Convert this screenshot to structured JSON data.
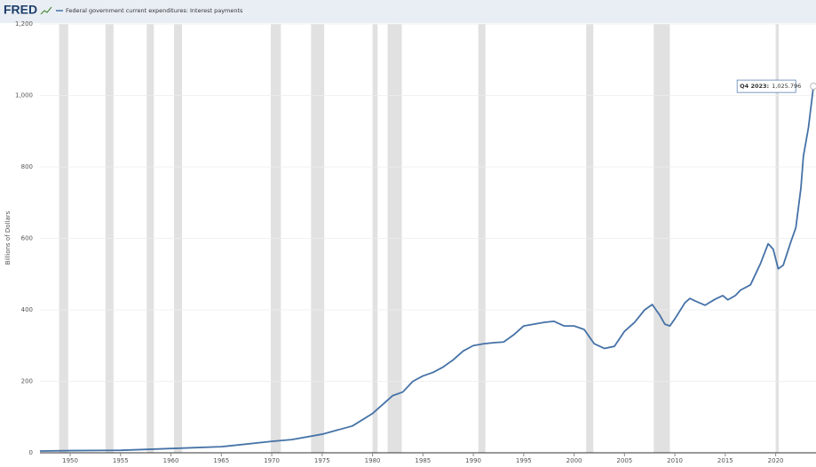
{
  "chart_data": {
    "type": "line",
    "logo": "FRED",
    "series": [
      {
        "name": "Federal government current expenditures: Interest payments",
        "color": "#4572a7",
        "x": [
          1947,
          1950,
          1955,
          1960,
          1965,
          1970,
          1972,
          1975,
          1978,
          1980,
          1981,
          1982,
          1983,
          1984,
          1985,
          1986,
          1987,
          1988,
          1989,
          1990,
          1991,
          1992,
          1993,
          1994,
          1995,
          1996,
          1997,
          1998,
          1999,
          2000,
          2001,
          2002,
          2003,
          2004,
          2005,
          2006,
          2007,
          2007.75,
          2008.5,
          2009,
          2009.5,
          2010,
          2011,
          2011.5,
          2012,
          2013,
          2014,
          2014.75,
          2015.25,
          2016,
          2016.5,
          2017.5,
          2018.5,
          2019.25,
          2019.75,
          2020.25,
          2020.75,
          2021.5,
          2022,
          2022.5,
          2022.75,
          2023.25,
          2023.75
        ],
        "values": [
          5,
          6,
          7,
          12,
          17,
          32,
          37,
          52,
          75,
          110,
          135,
          160,
          170,
          200,
          215,
          225,
          240,
          260,
          285,
          300,
          305,
          308,
          310,
          330,
          355,
          360,
          365,
          368,
          355,
          355,
          345,
          305,
          292,
          298,
          340,
          365,
          400,
          415,
          385,
          360,
          355,
          375,
          420,
          432,
          425,
          413,
          430,
          440,
          428,
          440,
          455,
          470,
          530,
          585,
          570,
          515,
          525,
          590,
          630,
          740,
          830,
          910,
          1025.796
        ]
      }
    ],
    "ylabel": "Billions of Dollars",
    "xlim": [
      1947,
      2024
    ],
    "ylim": [
      0,
      1200
    ],
    "xticks": [
      1950,
      1955,
      1960,
      1965,
      1970,
      1975,
      1980,
      1985,
      1990,
      1995,
      2000,
      2005,
      2010,
      2015,
      2020
    ],
    "yticks": [
      0,
      200,
      400,
      600,
      800,
      {
        "value": 1000,
        "label": "1,000"
      },
      {
        "value": 1200,
        "label": "1,200"
      }
    ],
    "grid": true,
    "recessions": [
      [
        1948.9,
        1949.8
      ],
      [
        1953.5,
        1954.3
      ],
      [
        1957.6,
        1958.3
      ],
      [
        1960.3,
        1961.1
      ],
      [
        1969.9,
        1970.9
      ],
      [
        1973.9,
        1975.2
      ],
      [
        1980.0,
        1980.5
      ],
      [
        1981.5,
        1982.9
      ],
      [
        1990.5,
        1991.2
      ],
      [
        2001.2,
        2001.9
      ],
      [
        2007.9,
        2009.5
      ],
      [
        2020.0,
        2020.3
      ]
    ],
    "annotation": {
      "label": "Q4 2023:",
      "value": 1025.796,
      "value_label": "1,025.796"
    }
  }
}
